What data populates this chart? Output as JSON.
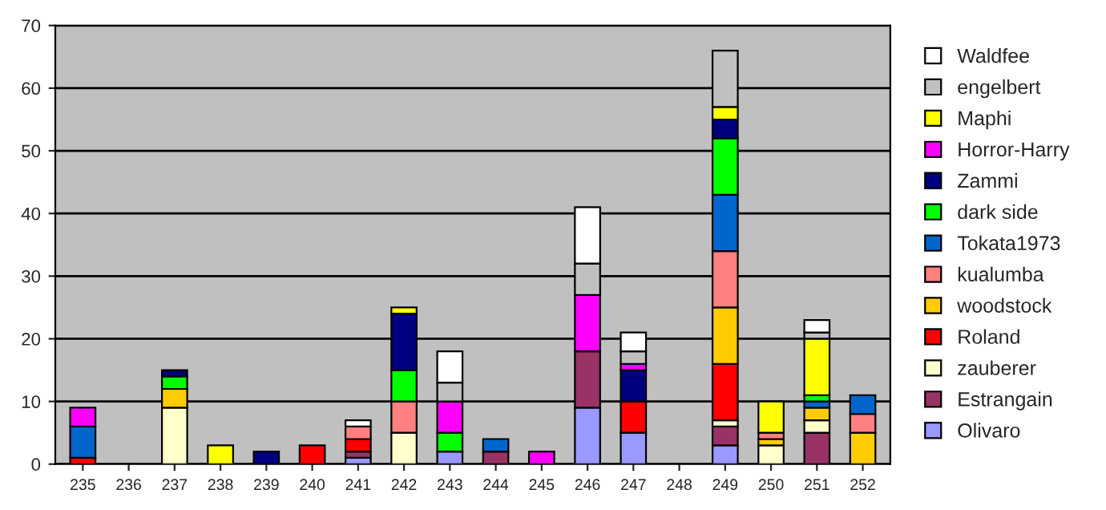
{
  "chart_data": {
    "type": "bar",
    "stacked": true,
    "categories": [
      "235",
      "236",
      "237",
      "238",
      "239",
      "240",
      "241",
      "242",
      "243",
      "244",
      "245",
      "246",
      "247",
      "248",
      "249",
      "250",
      "251",
      "252"
    ],
    "series": [
      {
        "name": "Olivaro",
        "color": "#9999ff",
        "values": [
          null,
          null,
          null,
          null,
          null,
          null,
          1,
          null,
          2,
          null,
          null,
          9,
          5,
          null,
          3,
          null,
          null,
          null
        ]
      },
      {
        "name": "Estrangain",
        "color": "#993366",
        "values": [
          null,
          null,
          null,
          null,
          null,
          null,
          1,
          null,
          null,
          2,
          null,
          9,
          null,
          null,
          3,
          null,
          5,
          null
        ]
      },
      {
        "name": "zauberer",
        "color": "#ffffcc",
        "values": [
          null,
          null,
          9,
          null,
          null,
          null,
          null,
          5,
          null,
          null,
          null,
          null,
          null,
          null,
          1,
          3,
          2,
          null
        ]
      },
      {
        "name": "Roland",
        "color": "#ff0000",
        "values": [
          1,
          null,
          null,
          null,
          null,
          3,
          2,
          null,
          null,
          null,
          null,
          null,
          5,
          null,
          9,
          null,
          null,
          null
        ]
      },
      {
        "name": "woodstock",
        "color": "#ffcc00",
        "values": [
          null,
          null,
          3,
          null,
          null,
          null,
          null,
          null,
          null,
          null,
          null,
          null,
          null,
          null,
          9,
          1,
          2,
          5
        ]
      },
      {
        "name": "kualumba",
        "color": "#ff8080",
        "values": [
          null,
          null,
          null,
          null,
          null,
          null,
          2,
          5,
          null,
          null,
          null,
          null,
          null,
          null,
          9,
          1,
          null,
          3
        ]
      },
      {
        "name": "Tokata1973",
        "color": "#0066cc",
        "values": [
          5,
          null,
          null,
          null,
          null,
          null,
          null,
          null,
          null,
          2,
          null,
          null,
          null,
          null,
          9,
          null,
          1,
          3
        ]
      },
      {
        "name": "dark side",
        "color": "#00ff00",
        "values": [
          null,
          null,
          2,
          null,
          null,
          null,
          null,
          5,
          3,
          null,
          null,
          null,
          null,
          null,
          9,
          null,
          1,
          null
        ]
      },
      {
        "name": "Zammi",
        "color": "#000080",
        "values": [
          null,
          null,
          1,
          null,
          2,
          null,
          null,
          9,
          null,
          null,
          null,
          null,
          5,
          null,
          3,
          null,
          null,
          null
        ]
      },
      {
        "name": "Horror-Harry",
        "color": "#ff00ff",
        "values": [
          3,
          null,
          null,
          null,
          null,
          null,
          null,
          null,
          5,
          null,
          2,
          9,
          1,
          null,
          null,
          null,
          null,
          null
        ]
      },
      {
        "name": "Maphi",
        "color": "#ffff00",
        "values": [
          null,
          null,
          null,
          3,
          null,
          null,
          null,
          1,
          null,
          null,
          null,
          null,
          null,
          null,
          2,
          5,
          9,
          null
        ]
      },
      {
        "name": "engelbert",
        "color": "#c0c0c0",
        "values": [
          null,
          null,
          null,
          null,
          null,
          null,
          null,
          null,
          3,
          null,
          null,
          5,
          2,
          null,
          9,
          null,
          1,
          null
        ]
      },
      {
        "name": "Waldfee",
        "color": "#ffffff",
        "values": [
          null,
          null,
          null,
          null,
          null,
          null,
          1,
          null,
          5,
          null,
          null,
          9,
          3,
          null,
          null,
          null,
          2,
          null
        ]
      }
    ],
    "ylim": [
      0,
      70
    ],
    "yticks": [
      0,
      10,
      20,
      30,
      40,
      50,
      60,
      70
    ],
    "grid": "y",
    "legend": "right"
  }
}
